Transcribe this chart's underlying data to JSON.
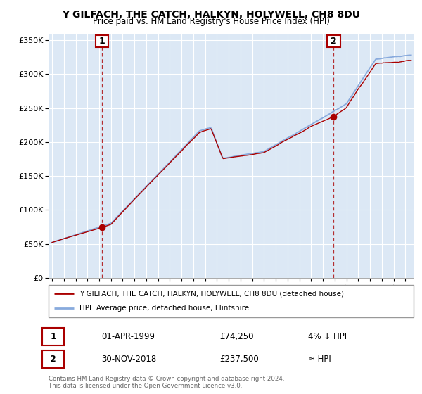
{
  "title": "Y GILFACH, THE CATCH, HALKYN, HOLYWELL, CH8 8DU",
  "subtitle": "Price paid vs. HM Land Registry's House Price Index (HPI)",
  "ylabel_ticks": [
    "£0",
    "£50K",
    "£100K",
    "£150K",
    "£200K",
    "£250K",
    "£300K",
    "£350K"
  ],
  "ytick_values": [
    0,
    50000,
    100000,
    150000,
    200000,
    250000,
    300000,
    350000
  ],
  "ylim": [
    0,
    360000
  ],
  "xlim_start": 1994.7,
  "xlim_end": 2025.7,
  "red_color": "#aa0000",
  "blue_color": "#88aadd",
  "plot_bg_color": "#dce8f5",
  "legend_red_label": "Y GILFACH, THE CATCH, HALKYN, HOLYWELL, CH8 8DU (detached house)",
  "legend_blue_label": "HPI: Average price, detached house, Flintshire",
  "marker1_date": 1999.25,
  "marker1_value": 74250,
  "marker1_label": "1",
  "marker1_text": "01-APR-1999",
  "marker1_price": "£74,250",
  "marker1_hpi": "4% ↓ HPI",
  "marker2_date": 2018.92,
  "marker2_value": 237500,
  "marker2_label": "2",
  "marker2_text": "30-NOV-2018",
  "marker2_price": "£237,500",
  "marker2_hpi": "≈ HPI",
  "footnote": "Contains HM Land Registry data © Crown copyright and database right 2024.\nThis data is licensed under the Open Government Licence v3.0.",
  "background_color": "#ffffff",
  "grid_color": "#ffffff"
}
